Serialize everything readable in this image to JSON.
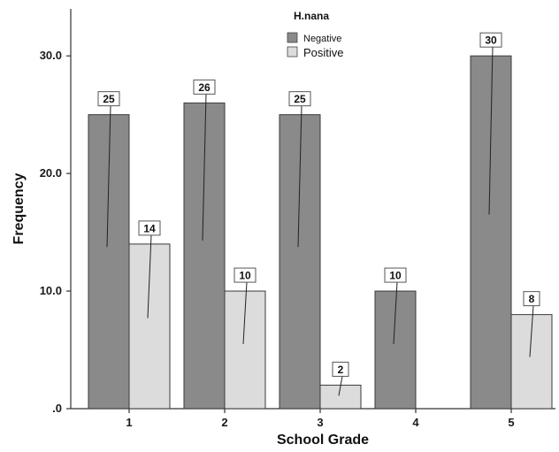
{
  "chart_data": {
    "type": "bar",
    "title": "",
    "xlabel": "School Grade",
    "ylabel": "Frequency",
    "categories": [
      "1",
      "2",
      "3",
      "4",
      "5"
    ],
    "ylim": [
      0,
      34
    ],
    "yticks": [
      0,
      10,
      20,
      30
    ],
    "ytick_labels": [
      ".0",
      "10.0",
      "20.0",
      "30.0"
    ],
    "grid": false,
    "legend": {
      "title": "H.nana",
      "placement": "top-center"
    },
    "series": [
      {
        "name": "Negative",
        "color": "#8a8a8a",
        "values": [
          25,
          26,
          25,
          10,
          30
        ],
        "labels": [
          "25",
          "26",
          "25",
          "10",
          "30"
        ]
      },
      {
        "name": "Positive",
        "color": "#dcdcdc",
        "values": [
          14,
          10,
          2,
          null,
          8
        ],
        "labels": [
          "14",
          "10",
          "2",
          "",
          "8"
        ]
      }
    ]
  }
}
